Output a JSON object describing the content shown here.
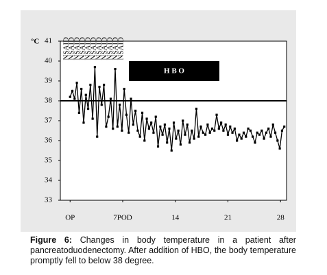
{
  "chart_data": {
    "type": "line",
    "y_unit_label": "°C",
    "annotations": {
      "box_text": "H B O",
      "nsaid": [
        "NSAID",
        "NSAID",
        "NSAID",
        "NSAID",
        "NSAID",
        "NSAID",
        "NSAID",
        "NSAID",
        "NSAID",
        "NSAID",
        "NSAID"
      ]
    },
    "reference_line": 38,
    "xlim": [
      -1.3,
      28.8
    ],
    "xticks": [
      {
        "value": 0,
        "label": "OP"
      },
      {
        "value": 7,
        "label": "7POD"
      },
      14,
      21,
      28
    ],
    "ylim": [
      33,
      41
    ],
    "yticks": [
      33,
      34,
      35,
      36,
      37,
      38,
      39,
      40,
      41
    ],
    "grid": false,
    "x": [
      0,
      0.3,
      0.6,
      0.9,
      1.2,
      1.5,
      1.8,
      2.1,
      2.4,
      2.7,
      3,
      3.3,
      3.6,
      3.9,
      4.2,
      4.5,
      4.8,
      5.1,
      5.4,
      5.7,
      6,
      6.3,
      6.6,
      6.9,
      7.2,
      7.5,
      7.8,
      8.1,
      8.4,
      8.7,
      9,
      9.3,
      9.6,
      9.9,
      10.2,
      10.5,
      10.8,
      11.1,
      11.4,
      11.7,
      12,
      12.3,
      12.6,
      12.9,
      13.2,
      13.5,
      13.8,
      14.1,
      14.4,
      14.7,
      15,
      15.3,
      15.6,
      15.9,
      16.2,
      16.5,
      16.8,
      17.1,
      17.4,
      17.7,
      18,
      18.3,
      18.6,
      18.9,
      19.2,
      19.5,
      19.8,
      20.1,
      20.4,
      20.7,
      21,
      21.3,
      21.6,
      21.9,
      22.2,
      22.5,
      22.8,
      23.1,
      23.4,
      23.7,
      24,
      24.3,
      24.6,
      24.9,
      25.2,
      25.5,
      25.8,
      26.1,
      26.4,
      26.7,
      27,
      27.3,
      27.6,
      27.9,
      28.2,
      28.5
    ],
    "series": [
      {
        "color": "#000000",
        "values": [
          38.2,
          38.5,
          38.1,
          38.9,
          37.4,
          38.6,
          36.9,
          38.3,
          37.6,
          38.8,
          37.1,
          39.7,
          36.2,
          38.7,
          37.8,
          38.8,
          36.7,
          37.2,
          38.1,
          36.6,
          39.6,
          36.7,
          37.8,
          36.5,
          38.6,
          37.3,
          36.4,
          38.1,
          36.8,
          37.5,
          36.5,
          36.2,
          37.4,
          36.0,
          37.1,
          36.6,
          36.9,
          36.4,
          37.2,
          35.7,
          36.7,
          36.3,
          36.8,
          35.9,
          36.6,
          35.5,
          36.9,
          36.1,
          36.5,
          35.8,
          37.0,
          36.3,
          36.8,
          35.9,
          36.5,
          36.1,
          37.6,
          36.2,
          36.7,
          36.4,
          36.3,
          36.8,
          36.4,
          36.6,
          36.5,
          37.3,
          36.6,
          36.9,
          36.5,
          36.8,
          36.3,
          36.7,
          36.4,
          36.6,
          36.0,
          36.3,
          36.1,
          36.4,
          36.2,
          36.6,
          36.5,
          36.2,
          35.9,
          36.4,
          36.3,
          36.5,
          36.1,
          36.4,
          36.6,
          36.2,
          36.8,
          36.4,
          36.0,
          35.6,
          36.5,
          36.7
        ]
      }
    ]
  },
  "caption": {
    "label": "Figure 6:",
    "text": "Changes in body temperature in a patient after pancreatoduodenectomy. After addition of HBO, the body temperature promptly fell to below 38 degree."
  }
}
